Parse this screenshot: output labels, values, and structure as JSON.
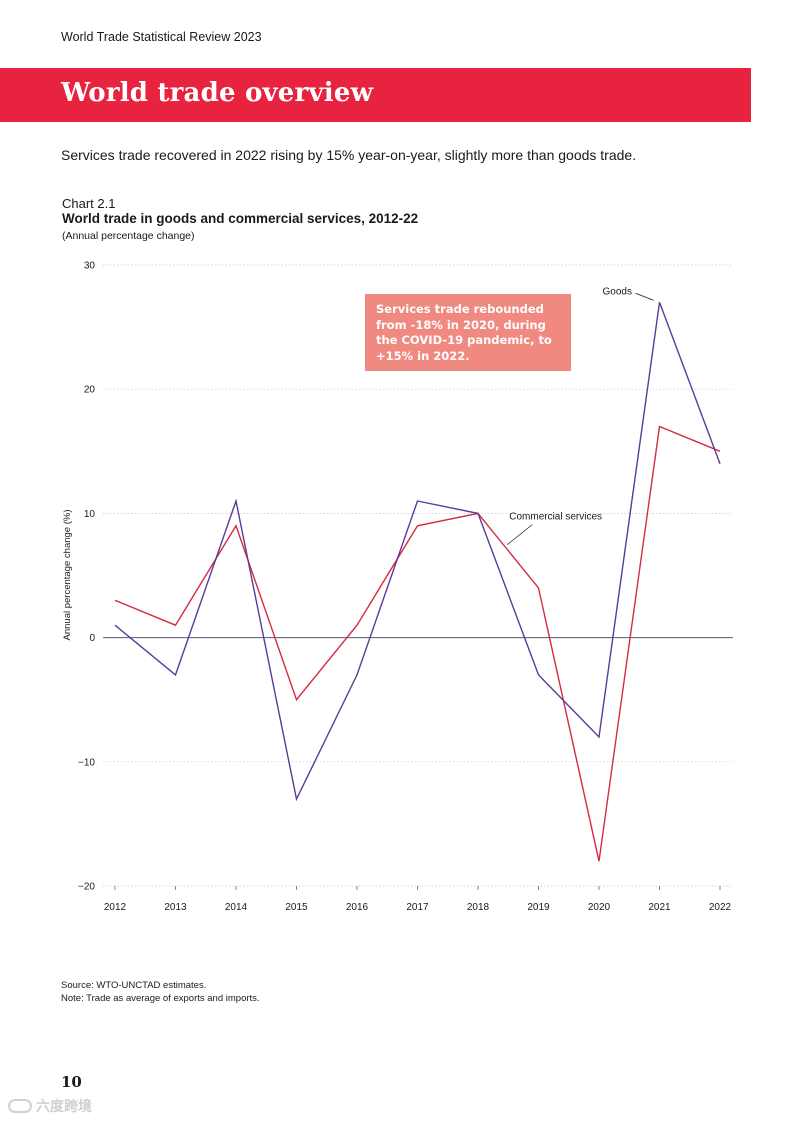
{
  "header": {
    "publication": "World Trade Statistical Review 2023"
  },
  "section": {
    "title": "World trade overview"
  },
  "lead": "Services trade recovered in 2022 rising by 15% year-on-year, slightly more than goods trade.",
  "chart": {
    "number": "Chart 2.1",
    "title": "World trade in goods and commercial services, 2012-22",
    "subtitle": "(Annual percentage change)",
    "callout": "Services trade rebounded from -18% in 2020, during the COVID-19 pandemic, to +15% in 2022."
  },
  "chart_data": {
    "type": "line",
    "title": "World trade in goods and commercial services, 2012-22",
    "subtitle": "(Annual percentage change)",
    "xlabel": "",
    "ylabel": "Annual percentage change (%)",
    "ylim": [
      -20,
      30
    ],
    "yticks": [
      30,
      20,
      10,
      0,
      -10,
      -20
    ],
    "ytick_labels": [
      "30",
      "20",
      "10",
      "0",
      "−10",
      "−20"
    ],
    "grid": true,
    "categories": [
      "2012",
      "2013",
      "2014",
      "2015",
      "2016",
      "2017",
      "2018",
      "2019",
      "2020",
      "2021",
      "2022"
    ],
    "series": [
      {
        "name": "Goods",
        "color": "#5b3b97",
        "values": [
          1,
          -3,
          11,
          -13,
          -3,
          11,
          10,
          -3,
          -8,
          27,
          14
        ]
      },
      {
        "name": "Commercial services",
        "color": "#d42b43",
        "values": [
          3,
          1,
          9,
          -5,
          1,
          9,
          10,
          4,
          -18,
          17,
          15
        ]
      }
    ],
    "colors": {
      "axis": "#5a5a6e",
      "grid": "#c8c8c8",
      "callout_bg": "#f0897f"
    }
  },
  "footer": {
    "source": "Source: WTO-UNCTAD estimates.",
    "note": "Note: Trade as average of exports and imports.",
    "page_number": "10"
  },
  "watermark": {
    "text": "六度跨境"
  }
}
